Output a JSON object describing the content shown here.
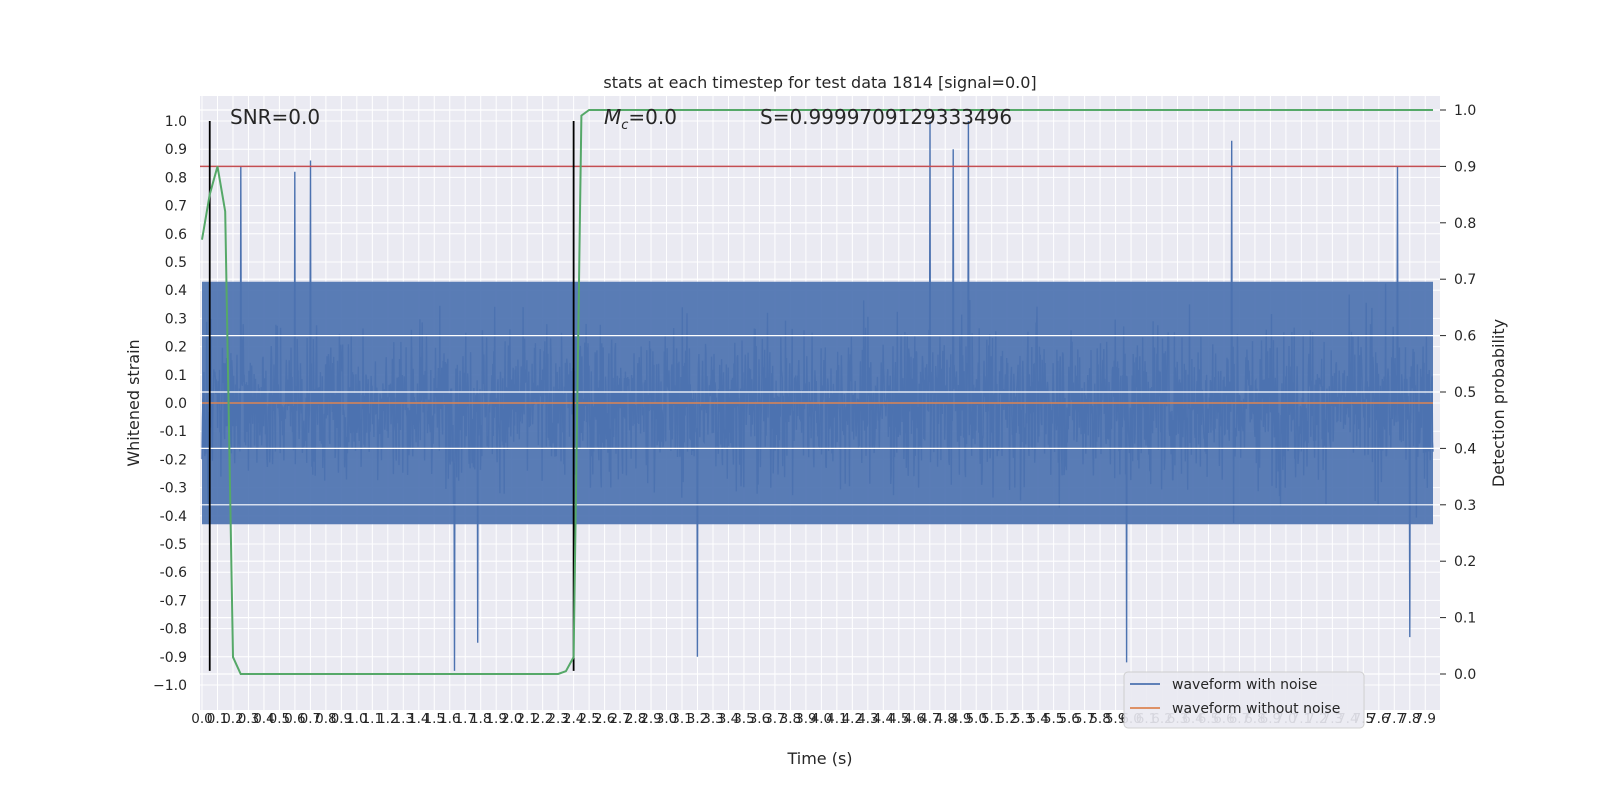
{
  "chart_data": {
    "type": "line",
    "title": "stats at each timestep for test data 1814 [signal=0.0]",
    "xlabel": "Time (s)",
    "ylabel": "Whitened strain",
    "y2label": "Detection probability",
    "xlim": [
      0.0,
      7.95
    ],
    "ylim": [
      -1.1,
      1.1
    ],
    "y2lim": [
      -0.05,
      1.05
    ],
    "grid": true,
    "x_ticks": [
      "0.0",
      "0.1",
      "0.2",
      "0.3",
      "0.4",
      "0.5",
      "0.6",
      "0.7",
      "0.8",
      "0.9",
      "1.0",
      "1.1",
      "1.2",
      "1.3",
      "1.4",
      "1.5",
      "1.6",
      "1.7",
      "1.8",
      "1.9",
      "2.0",
      "2.1",
      "2.2",
      "2.3",
      "2.4",
      "2.5",
      "2.6",
      "2.7",
      "2.8",
      "2.9",
      "3.0",
      "3.1",
      "3.2",
      "3.3",
      "3.4",
      "3.5",
      "3.6",
      "3.7",
      "3.8",
      "3.9",
      "4.0",
      "4.1",
      "4.2",
      "4.3",
      "4.4",
      "4.5",
      "4.6",
      "4.7",
      "4.8",
      "4.9",
      "5.0",
      "5.1",
      "5.2",
      "5.3",
      "5.4",
      "5.5",
      "5.6",
      "5.7",
      "5.8",
      "5.9",
      "6.0",
      "6.1",
      "6.2",
      "6.3",
      "6.4",
      "6.5",
      "6.6",
      "6.7",
      "6.8",
      "6.9",
      "7.0",
      "7.1",
      "7.2",
      "7.3",
      "7.4",
      "7.5",
      "7.6",
      "7.7",
      "7.8",
      "7.9"
    ],
    "y_ticks": [
      "1.0",
      "0.9",
      "0.8",
      "0.7",
      "0.6",
      "0.5",
      "0.4",
      "0.3",
      "0.2",
      "0.1",
      "0.0",
      "-0.1",
      "-0.2",
      "-0.3",
      "-0.4",
      "-0.5",
      "-0.6",
      "-0.7",
      "-0.8",
      "-0.9",
      "−1.0"
    ],
    "y2_ticks": [
      "1.0",
      "0.9",
      "0.8",
      "0.7",
      "0.6",
      "0.5",
      "0.4",
      "0.3",
      "0.2",
      "0.1",
      "0.0"
    ],
    "series": [
      {
        "name": "waveform with noise",
        "color": "#4c72b0",
        "description_values": {
          "typical_range": [
            -0.45,
            0.45
          ],
          "max": 1.0,
          "min": -0.95,
          "x_range": [
            0.0,
            7.95
          ]
        },
        "spikes_up": [
          [
            0.25,
            0.84
          ],
          [
            0.6,
            0.82
          ],
          [
            0.7,
            0.86
          ],
          [
            4.7,
            1.0
          ],
          [
            4.85,
            0.9
          ],
          [
            4.95,
            1.0
          ],
          [
            6.65,
            0.93
          ],
          [
            7.72,
            0.84
          ],
          [
            7.8,
            0.82
          ]
        ],
        "spikes_down": [
          [
            1.63,
            -0.95
          ],
          [
            1.78,
            -0.85
          ],
          [
            3.2,
            -0.9
          ],
          [
            5.97,
            -0.92
          ],
          [
            7.8,
            -0.83
          ]
        ]
      },
      {
        "name": "waveform without noise",
        "color": "#dd8452",
        "x": [
          0.0,
          7.95
        ],
        "y": [
          0.0,
          0.0
        ]
      },
      {
        "name": "",
        "color": "#55a868",
        "axis": "right",
        "x": [
          0.0,
          0.05,
          0.1,
          0.15,
          0.2,
          0.25,
          2.3,
          2.35,
          2.4,
          2.45,
          2.5,
          7.95
        ],
        "y": [
          0.77,
          0.85,
          0.9,
          0.82,
          0.03,
          0.0,
          0.0,
          0.005,
          0.03,
          0.99,
          1.0,
          1.0
        ]
      }
    ],
    "threshold_line": {
      "color": "#c44e52",
      "value": 0.9,
      "axis": "right"
    },
    "vertical_lines": [
      0.05,
      2.4
    ],
    "annotations": {
      "snr": "SNR=0.0",
      "mc": "=0.0",
      "mc_symbol": "M",
      "mc_sub": "c",
      "s": "S=0.9999709129333496"
    },
    "legend": {
      "placement": "lower-right",
      "entries": [
        "waveform with noise",
        "waveform without noise"
      ]
    }
  }
}
